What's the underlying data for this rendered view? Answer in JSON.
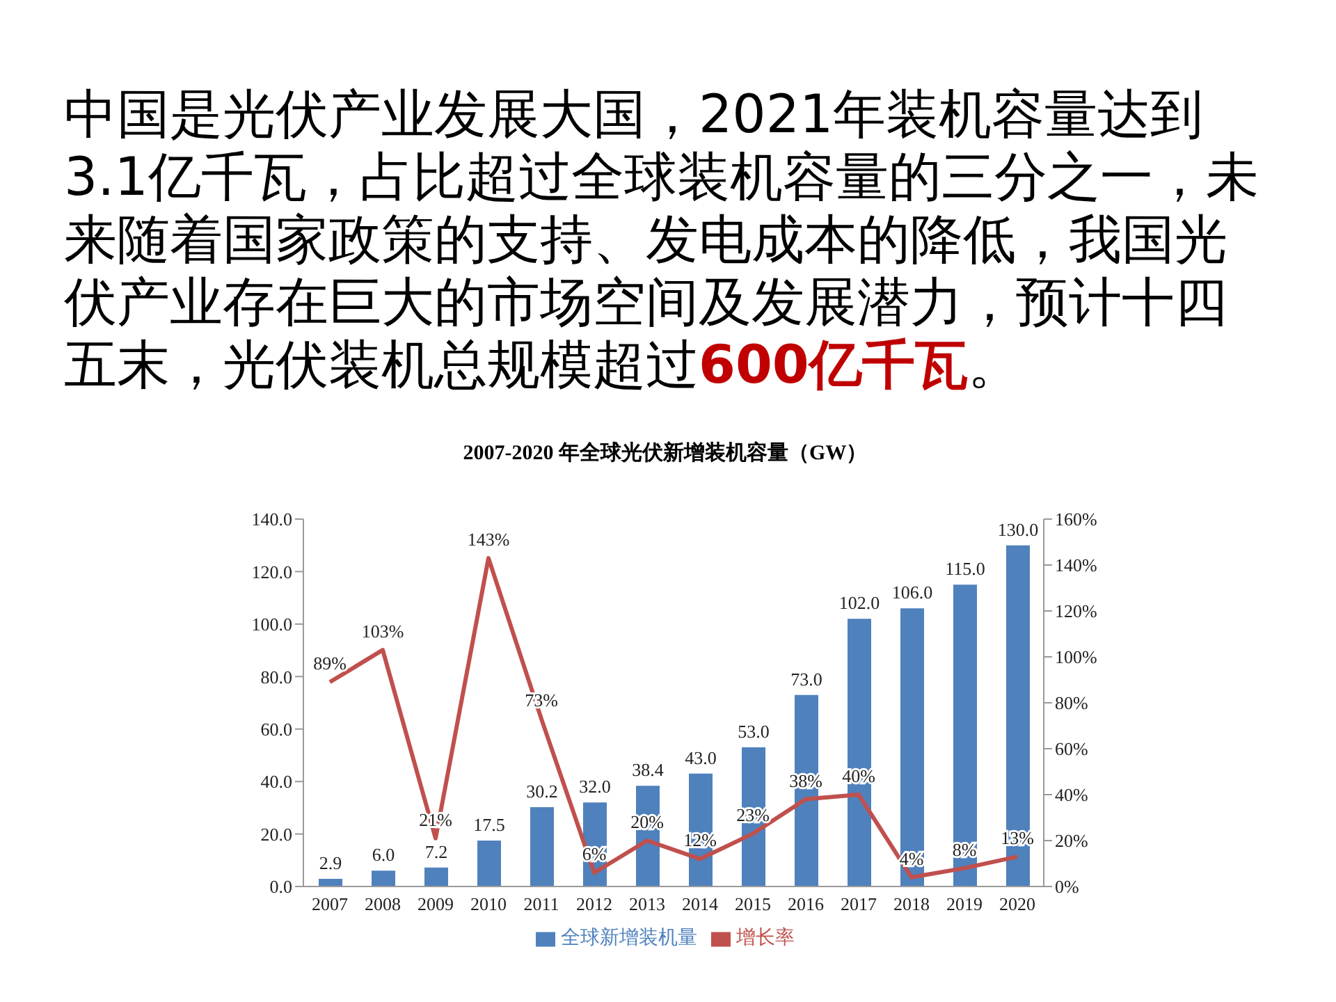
{
  "chart_data": {
    "type": "bar",
    "title": "2007-2020 年全球光伏新增装机容量（GW）",
    "annotations": [
      "中国是光伏产业发展大国，2021年装机容量达到3.1亿千瓦，占比超过全球装机容量的三分之一，未来随着国家政策的支持、发电成本的降低，我国光伏产业存在巨大的市场空间及发展潜力，预计十四五末，光伏装机总规模超过",
      "600亿千瓦",
      "。"
    ],
    "categories": [
      "2007",
      "2008",
      "2009",
      "2010",
      "2011",
      "2012",
      "2013",
      "2014",
      "2015",
      "2016",
      "2017",
      "2018",
      "2019",
      "2020"
    ],
    "series": [
      {
        "name": "全球新增装机量",
        "color": "#4f81bd",
        "values": [
          2.9,
          6.0,
          7.2,
          17.5,
          30.2,
          32.0,
          38.4,
          43.0,
          53.0,
          73.0,
          102.0,
          106.0,
          115.0,
          130.0
        ],
        "value_labels": [
          "2.9",
          "6.0",
          "7.2",
          "17.5",
          "30.2",
          "32.0",
          "38.4",
          "43.0",
          "53.0",
          "73.0",
          "102.0",
          "106.0",
          "115.0",
          "130.0"
        ]
      },
      {
        "name": "增长率",
        "type": "line",
        "axis": "y2",
        "color": "#c0504d",
        "values": [
          89,
          103,
          21,
          143,
          73,
          6,
          20,
          12,
          23,
          38,
          40,
          4,
          8,
          13
        ],
        "value_labels": [
          "89%",
          "103%",
          "21%",
          "143%",
          "73%",
          "6%",
          "20%",
          "12%",
          "23%",
          "38%",
          "40%",
          "4%",
          "8%",
          "13%"
        ]
      }
    ],
    "ylim": [
      0,
      140
    ],
    "yticks": [
      {
        "value": 0,
        "label": "0.0"
      },
      {
        "value": 20,
        "label": "20.0"
      },
      {
        "value": 40,
        "label": "40.0"
      },
      {
        "value": 60,
        "label": "60.0"
      },
      {
        "value": 80,
        "label": "80.0"
      },
      {
        "value": 100,
        "label": "100.0"
      },
      {
        "value": 120,
        "label": "120.0"
      },
      {
        "value": 140,
        "label": "140.0"
      }
    ],
    "y2lim": [
      0,
      160
    ],
    "y2ticks": [
      {
        "value": 0,
        "label": "0%"
      },
      {
        "value": 20,
        "label": "20%"
      },
      {
        "value": 40,
        "label": "40%"
      },
      {
        "value": 60,
        "label": "60%"
      },
      {
        "value": 80,
        "label": "80%"
      },
      {
        "value": 100,
        "label": "100%"
      },
      {
        "value": 120,
        "label": "120%"
      },
      {
        "value": 140,
        "label": "140%"
      },
      {
        "value": 160,
        "label": "160%"
      }
    ],
    "grid": false,
    "legend": "bottom",
    "marker": "none",
    "line_style": "solid"
  }
}
